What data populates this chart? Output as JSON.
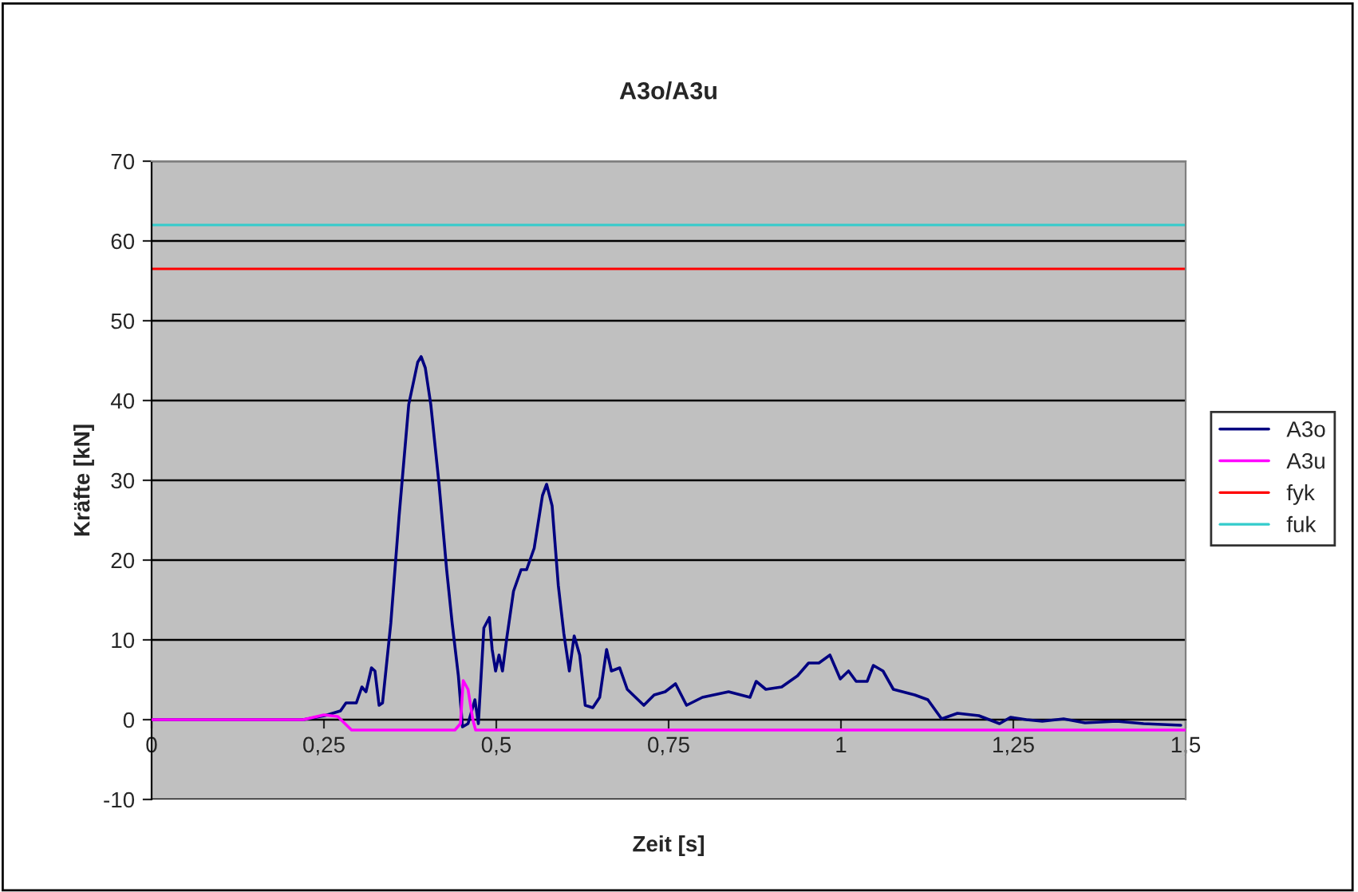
{
  "chart_data": {
    "type": "line",
    "title": "A3o/A3u",
    "xlabel": "Zeit [s]",
    "ylabel": "Kräfte [kN]",
    "xlim": [
      0,
      1.5
    ],
    "xticks": [
      0,
      {
        "value": 0.25,
        "label": "0,25"
      },
      {
        "value": 0.5,
        "label": "0,5"
      },
      {
        "value": 0.75,
        "label": "0,75"
      },
      1,
      {
        "value": 1.25,
        "label": "1,25"
      },
      {
        "value": 1.5,
        "label": "1,5"
      }
    ],
    "ylim": [
      -10,
      70
    ],
    "yticks": [
      -10,
      0,
      10,
      20,
      30,
      40,
      50,
      60,
      70
    ],
    "grid": "y",
    "legend": "right",
    "marker": "none",
    "line_style": "solid",
    "series": [
      {
        "name": "A3o",
        "color": "#000080",
        "x": [
          0,
          0.22,
          0.251,
          0.274,
          0.282,
          0.297,
          0.305,
          0.311,
          0.319,
          0.324,
          0.33,
          0.335,
          0.347,
          0.359,
          0.373,
          0.386,
          0.391,
          0.397,
          0.405,
          0.417,
          0.428,
          0.436,
          0.445,
          0.451,
          0.459,
          0.469,
          0.474,
          0.482,
          0.49,
          0.494,
          0.499,
          0.504,
          0.509,
          0.515,
          0.525,
          0.536,
          0.544,
          0.555,
          0.567,
          0.573,
          0.581,
          0.59,
          0.598,
          0.606,
          0.613,
          0.621,
          0.629,
          0.64,
          0.65,
          0.66,
          0.667,
          0.679,
          0.69,
          0.714,
          0.729,
          0.745,
          0.76,
          0.776,
          0.799,
          0.837,
          0.868,
          0.877,
          0.891,
          0.914,
          0.937,
          0.953,
          0.968,
          0.984,
          0.999,
          1.011,
          1.022,
          1.038,
          1.047,
          1.061,
          1.076,
          1.107,
          1.126,
          1.146,
          1.169,
          1.2,
          1.23,
          1.246,
          1.269,
          1.292,
          1.323,
          1.354,
          1.4,
          1.439,
          1.493
        ],
        "values": [
          0,
          0,
          0.5,
          1.1,
          2.1,
          2.1,
          4.1,
          3.5,
          6.5,
          6.1,
          1.8,
          2.1,
          12.1,
          25.5,
          39.5,
          44.8,
          45.5,
          44.1,
          39.5,
          29.5,
          18.8,
          12.1,
          5.5,
          -0.9,
          -0.5,
          2.5,
          -0.5,
          11.5,
          12.8,
          8.8,
          6.1,
          8.1,
          6.1,
          10.1,
          16.1,
          18.8,
          18.8,
          21.5,
          28.1,
          29.5,
          26.8,
          16.8,
          10.8,
          6.1,
          10.5,
          8.1,
          1.8,
          1.5,
          2.8,
          8.8,
          6.1,
          6.5,
          3.8,
          1.8,
          3.1,
          3.5,
          4.5,
          1.8,
          2.8,
          3.5,
          2.8,
          4.8,
          3.8,
          4.1,
          5.5,
          7.1,
          7.1,
          8.1,
          5.1,
          6.1,
          4.8,
          4.8,
          6.8,
          6.1,
          3.8,
          3.1,
          2.5,
          0.1,
          0.8,
          0.5,
          -0.5,
          0.3,
          0,
          -0.2,
          0.1,
          -0.4,
          -0.2,
          -0.5,
          -0.7
        ]
      },
      {
        "name": "A3u",
        "color": "#ff00ff",
        "x": [
          0,
          0.22,
          0.25,
          0.27,
          0.29,
          0.44,
          0.448,
          0.452,
          0.459,
          0.466,
          0.47,
          1.5
        ],
        "values": [
          0,
          0,
          0.6,
          0.4,
          -1.3,
          -1.3,
          -0.5,
          4.9,
          3.8,
          0,
          -1.3,
          -1.3
        ]
      }
    ],
    "ref_lines": [
      {
        "axis": "y",
        "value": 56.5,
        "label": "fyk",
        "color": "#ff0000"
      },
      {
        "axis": "y",
        "value": 62,
        "label": "fuk",
        "color": "#33cccc"
      }
    ]
  }
}
